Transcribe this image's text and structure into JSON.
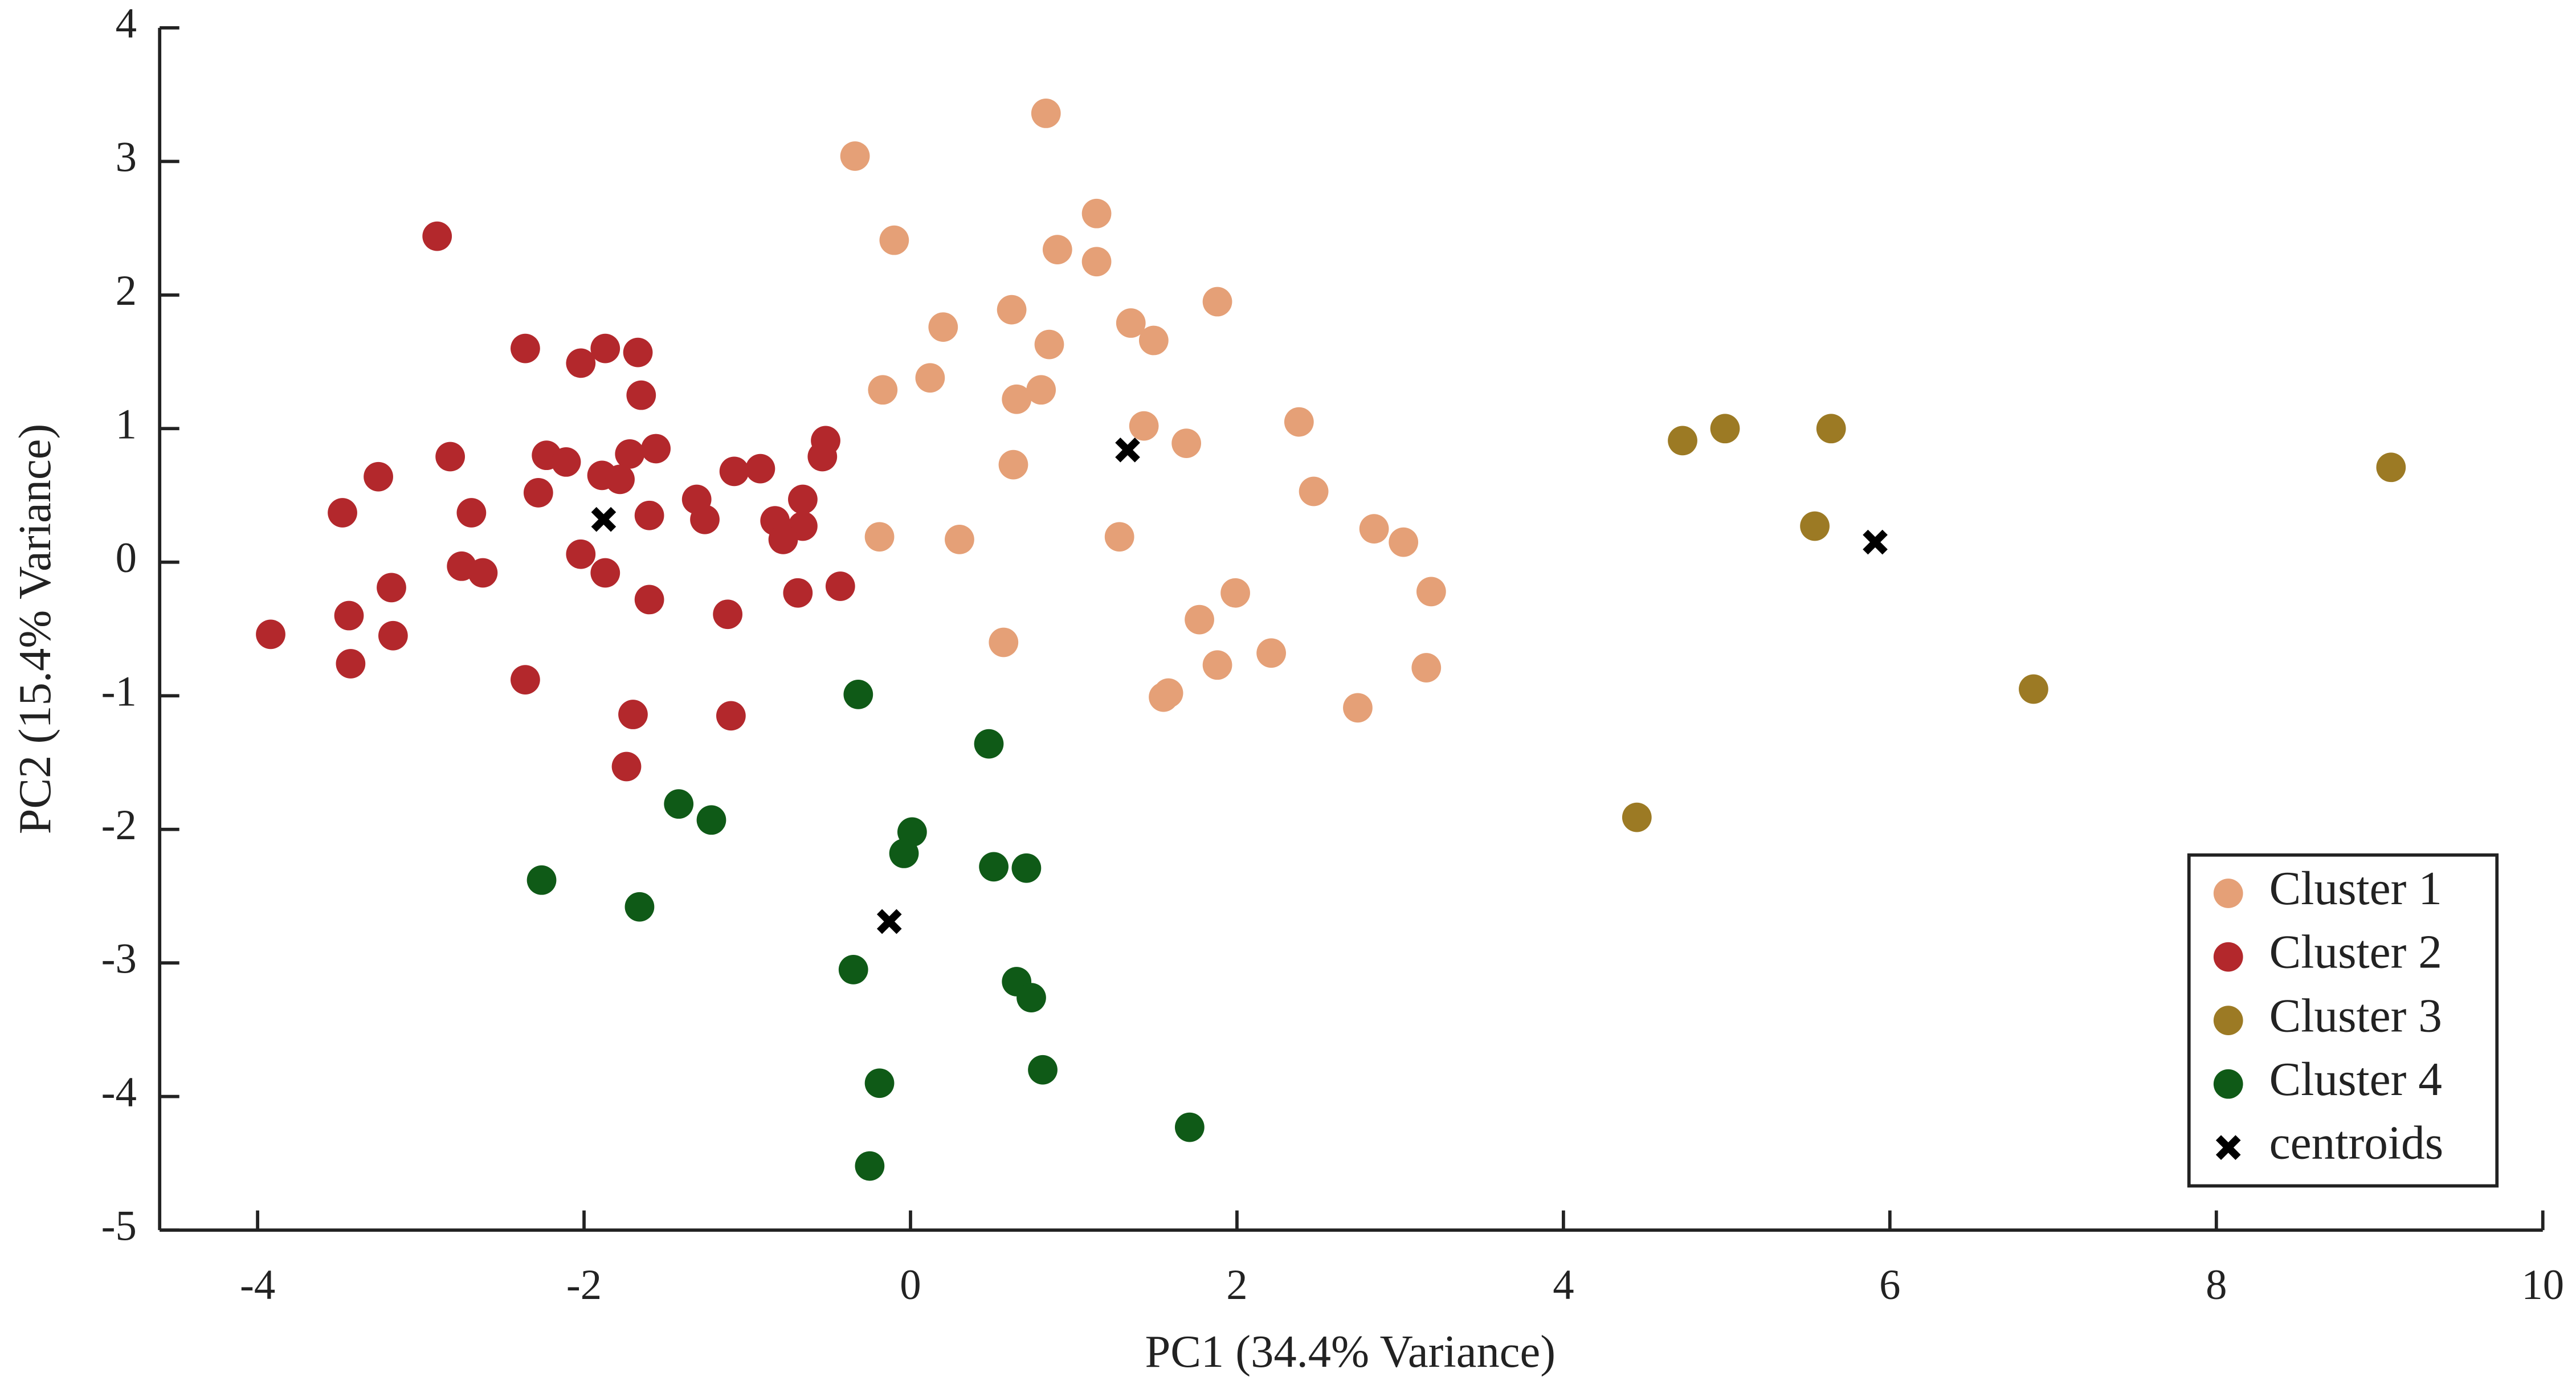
{
  "chart_data": {
    "type": "scatter",
    "xlabel": "PC1 (34.4% Variance)",
    "ylabel": "PC2 (15.4% Variance)",
    "xlim": [
      -4.6,
      10
    ],
    "ylim": [
      -5,
      4
    ],
    "xticks": [
      -4,
      -2,
      0,
      2,
      4,
      6,
      8,
      10
    ],
    "yticks": [
      -5,
      -4,
      -3,
      -2,
      -1,
      0,
      1,
      2,
      3,
      4
    ],
    "legend": "lower right",
    "series": [
      {
        "name": "Cluster 1",
        "color": "#e5a077",
        "marker": "circle",
        "x": [
          0.83,
          -0.34,
          -0.1,
          1.14,
          0.9,
          1.14,
          1.88,
          0.62,
          0.2,
          1.35,
          0.85,
          1.49,
          -0.17,
          0.12,
          0.65,
          0.8,
          1.43,
          1.69,
          2.38,
          0.63,
          2.47,
          -0.19,
          0.3,
          1.28,
          2.84,
          3.02,
          3.19,
          1.99,
          1.77,
          0.57,
          1.88,
          2.21,
          3.16,
          1.58,
          1.55,
          2.74
        ],
        "y": [
          3.36,
          3.04,
          2.41,
          2.61,
          2.34,
          2.25,
          1.95,
          1.89,
          1.76,
          1.79,
          1.63,
          1.66,
          1.29,
          1.38,
          1.22,
          1.29,
          1.02,
          0.89,
          1.05,
          0.73,
          0.53,
          0.19,
          0.17,
          0.19,
          0.25,
          0.15,
          -0.22,
          -0.23,
          -0.43,
          -0.6,
          -0.77,
          -0.68,
          -0.79,
          -0.98,
          -1.01,
          -1.09
        ]
      },
      {
        "name": "Cluster 2",
        "color": "#b3282c",
        "marker": "circle",
        "x": [
          -2.9,
          -2.36,
          -1.87,
          -1.67,
          -2.02,
          -1.65,
          -0.52,
          -2.82,
          -2.23,
          -2.11,
          -0.54,
          -1.56,
          -1.72,
          -3.26,
          -1.89,
          -1.78,
          -2.28,
          -1.08,
          -0.92,
          -3.48,
          -2.69,
          -1.6,
          -1.31,
          -1.26,
          -0.66,
          -0.83,
          -0.66,
          -0.78,
          -2.02,
          -1.87,
          -2.75,
          -2.62,
          -3.18,
          -0.43,
          -1.6,
          -0.69,
          -1.12,
          -3.92,
          -3.44,
          -3.17,
          -3.43,
          -2.36,
          -1.7,
          -1.1,
          -1.74
        ],
        "y": [
          2.44,
          1.6,
          1.6,
          1.57,
          1.49,
          1.25,
          0.91,
          0.79,
          0.8,
          0.75,
          0.79,
          0.85,
          0.81,
          0.64,
          0.65,
          0.62,
          0.52,
          0.68,
          0.7,
          0.37,
          0.37,
          0.35,
          0.47,
          0.32,
          0.47,
          0.31,
          0.27,
          0.17,
          0.06,
          -0.08,
          -0.03,
          -0.08,
          -0.19,
          -0.18,
          -0.28,
          -0.23,
          -0.39,
          -0.54,
          -0.4,
          -0.55,
          -0.76,
          -0.88,
          -1.14,
          -1.15,
          -1.53
        ]
      },
      {
        "name": "Cluster 3",
        "color": "#9c7a24",
        "marker": "circle",
        "x": [
          4.73,
          4.99,
          5.64,
          9.07,
          5.54,
          6.88,
          4.45
        ],
        "y": [
          0.91,
          1.0,
          1.0,
          0.71,
          0.27,
          -0.95,
          -1.91
        ]
      },
      {
        "name": "Cluster 4",
        "color": "#0f5a17",
        "marker": "circle",
        "x": [
          -0.32,
          0.48,
          -1.42,
          -1.22,
          0.01,
          -0.04,
          0.51,
          0.71,
          -2.26,
          -1.66,
          -0.35,
          0.65,
          0.74,
          -0.19,
          0.81,
          1.71,
          -0.25
        ],
        "y": [
          -0.99,
          -1.36,
          -1.81,
          -1.93,
          -2.02,
          -2.18,
          -2.28,
          -2.29,
          -2.38,
          -2.58,
          -3.05,
          -3.14,
          -3.26,
          -3.9,
          -3.8,
          -4.23,
          -4.52
        ]
      },
      {
        "name": "centroids",
        "color": "#000000",
        "marker": "x",
        "x": [
          -1.88,
          1.33,
          5.91,
          -0.13
        ],
        "y": [
          0.32,
          0.84,
          0.15,
          -2.69
        ]
      }
    ]
  }
}
